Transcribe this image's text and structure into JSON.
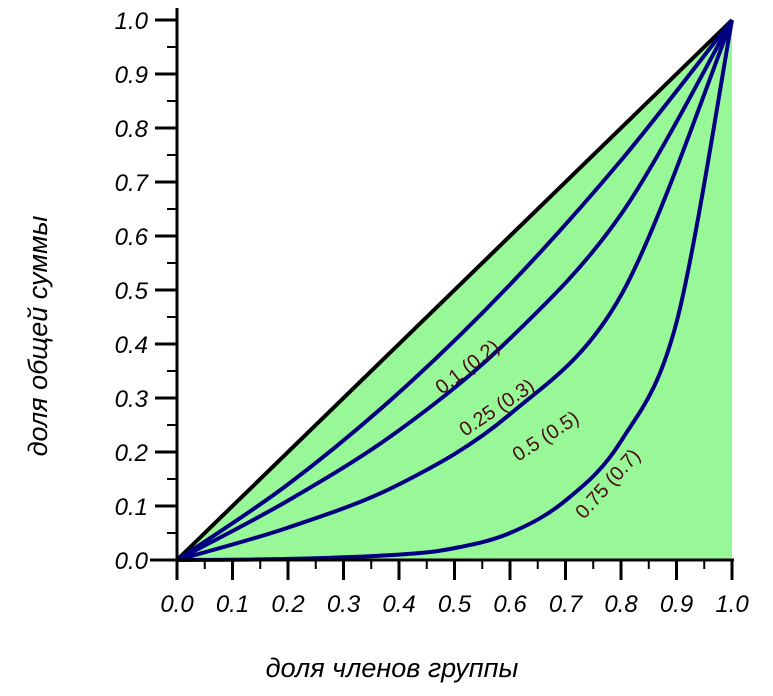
{
  "chart_data": {
    "type": "line",
    "title": "",
    "xlabel": "доля членов группы",
    "ylabel": "доля общей суммы",
    "xlim": [
      0,
      1
    ],
    "ylim": [
      0,
      1
    ],
    "x_ticks": [
      "0.0",
      "0.1",
      "0.2",
      "0.3",
      "0.4",
      "0.5",
      "0.6",
      "0.7",
      "0.8",
      "0.9",
      "1.0"
    ],
    "y_ticks": [
      "0.0",
      "0.1",
      "0.2",
      "0.3",
      "0.4",
      "0.5",
      "0.6",
      "0.7",
      "0.8",
      "0.9",
      "1.0"
    ],
    "grid": false,
    "fill_color": "#98f898",
    "equality_line": {
      "x": [
        0,
        1
      ],
      "y": [
        0,
        1
      ],
      "color": "#000000"
    },
    "curve_color": "#000080",
    "label_color": "#4a0a14",
    "series": [
      {
        "label": "0.1 (0.2)",
        "x": [
          0,
          0.2,
          0.4,
          0.6,
          0.8,
          1
        ],
        "y": [
          0,
          0.14,
          0.31,
          0.51,
          0.74,
          1
        ]
      },
      {
        "label": "0.25 (0.3)",
        "x": [
          0,
          0.2,
          0.4,
          0.6,
          0.8,
          1
        ],
        "y": [
          0,
          0.11,
          0.24,
          0.41,
          0.64,
          1
        ]
      },
      {
        "label": "0.5 (0.5)",
        "x": [
          0,
          0.2,
          0.4,
          0.6,
          0.8,
          1
        ],
        "y": [
          0,
          0.06,
          0.14,
          0.27,
          0.49,
          1
        ]
      },
      {
        "label": "0.75 (0.7)",
        "x": [
          0,
          0.2,
          0.4,
          0.5,
          0.6,
          0.7,
          0.8,
          0.9,
          1
        ],
        "y": [
          0,
          0.002,
          0.01,
          0.022,
          0.05,
          0.11,
          0.22,
          0.44,
          1
        ]
      }
    ]
  }
}
